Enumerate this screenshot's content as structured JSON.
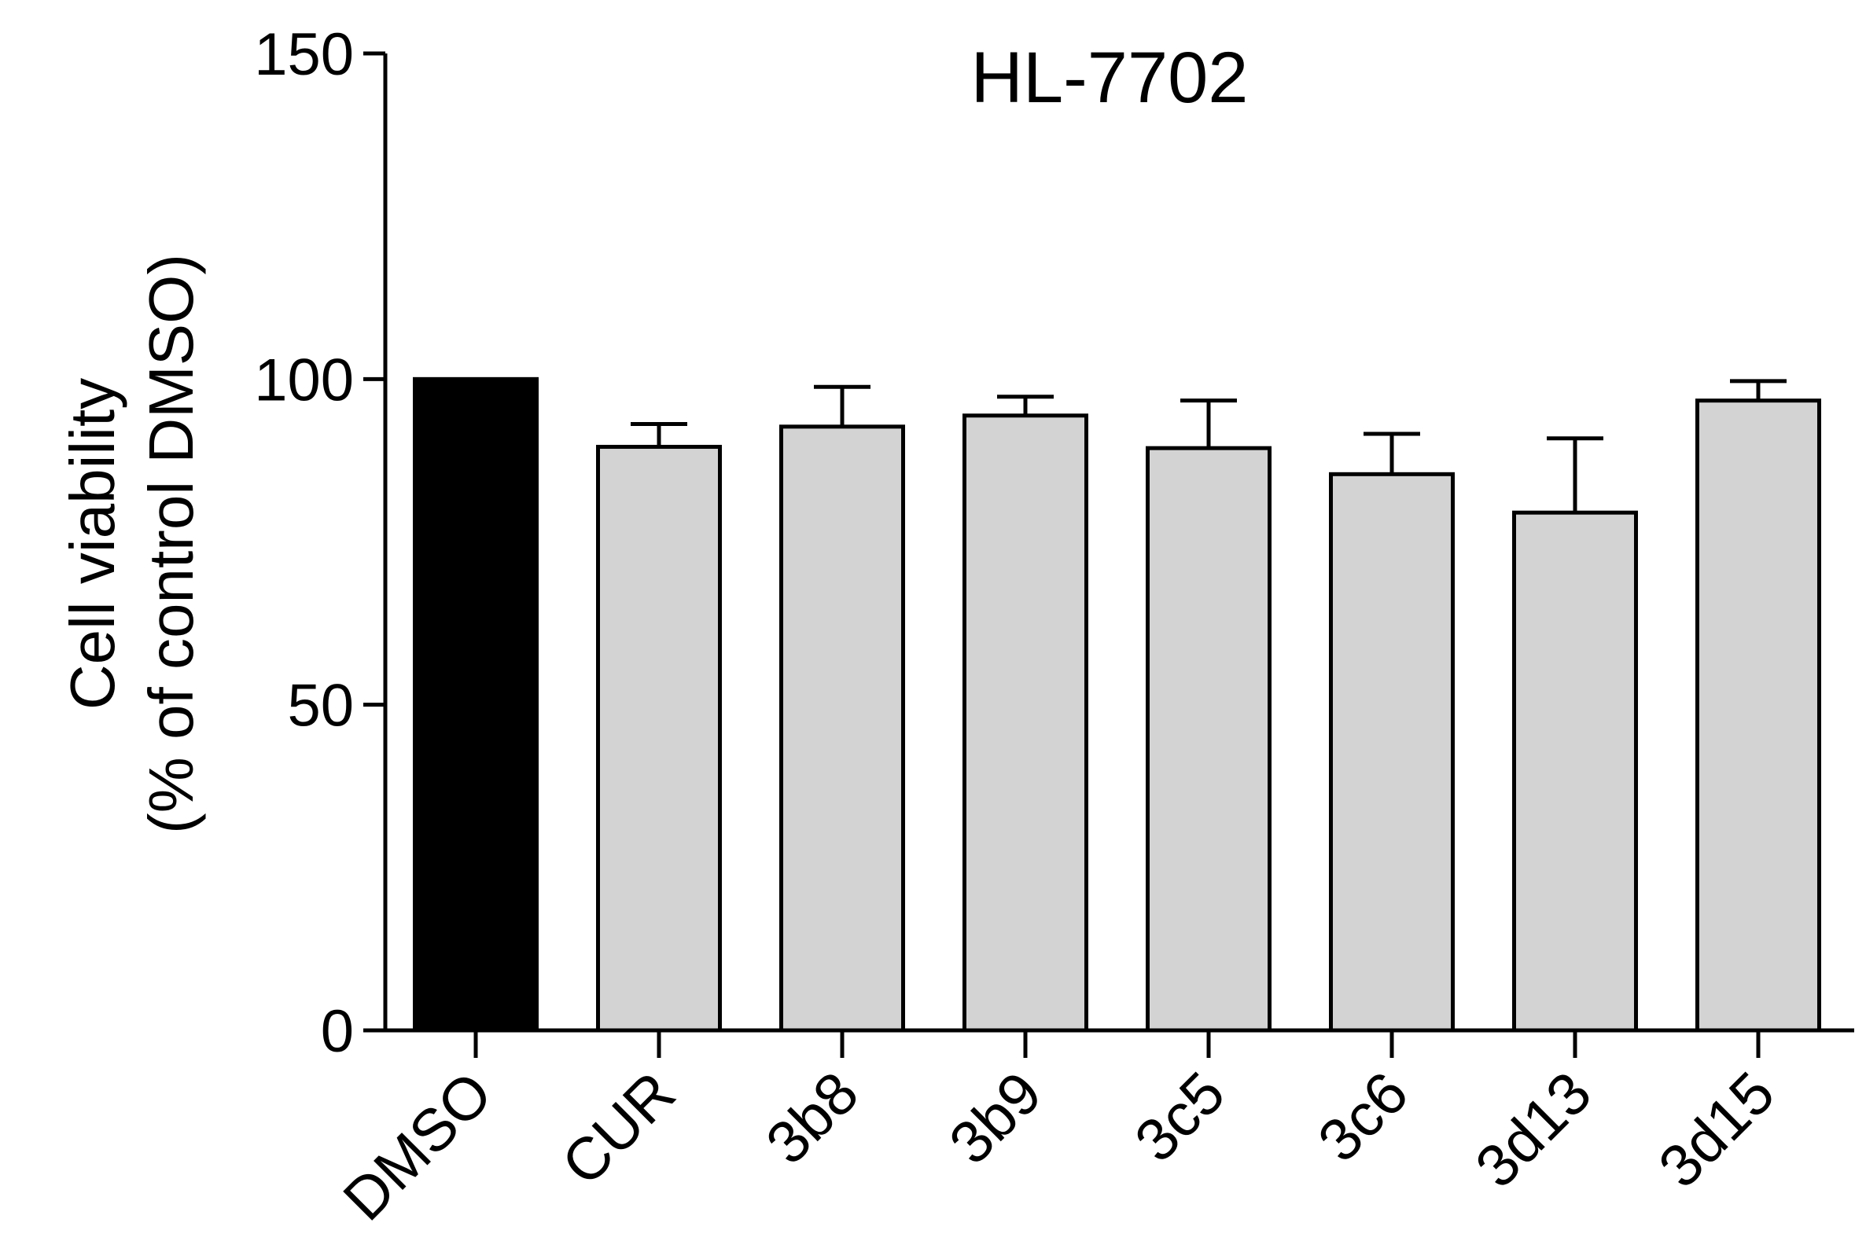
{
  "chart_data": {
    "type": "bar",
    "title": "HL-7702",
    "y_label": [
      "Cell viability",
      "(% of control DMSO)"
    ],
    "categories": [
      "DMSO",
      "CUR",
      "3b8",
      "3b9",
      "3c5",
      "3c6",
      "3d13",
      "3d15"
    ],
    "values": [
      100,
      89.6,
      92.7,
      94.4,
      89.4,
      85.4,
      79.5,
      96.7
    ],
    "errors": [
      null,
      3.5,
      6.1,
      2.9,
      7.3,
      6.2,
      11.4,
      3
    ],
    "colors": [
      "#000000",
      "#d3d3d3",
      "#d3d3d3",
      "#d3d3d3",
      "#d3d3d3",
      "#d3d3d3",
      "#d3d3d3",
      "#d3d3d3"
    ],
    "ylim": [
      0,
      150
    ],
    "yticks": [
      0,
      50,
      100,
      150
    ],
    "grid": false
  }
}
